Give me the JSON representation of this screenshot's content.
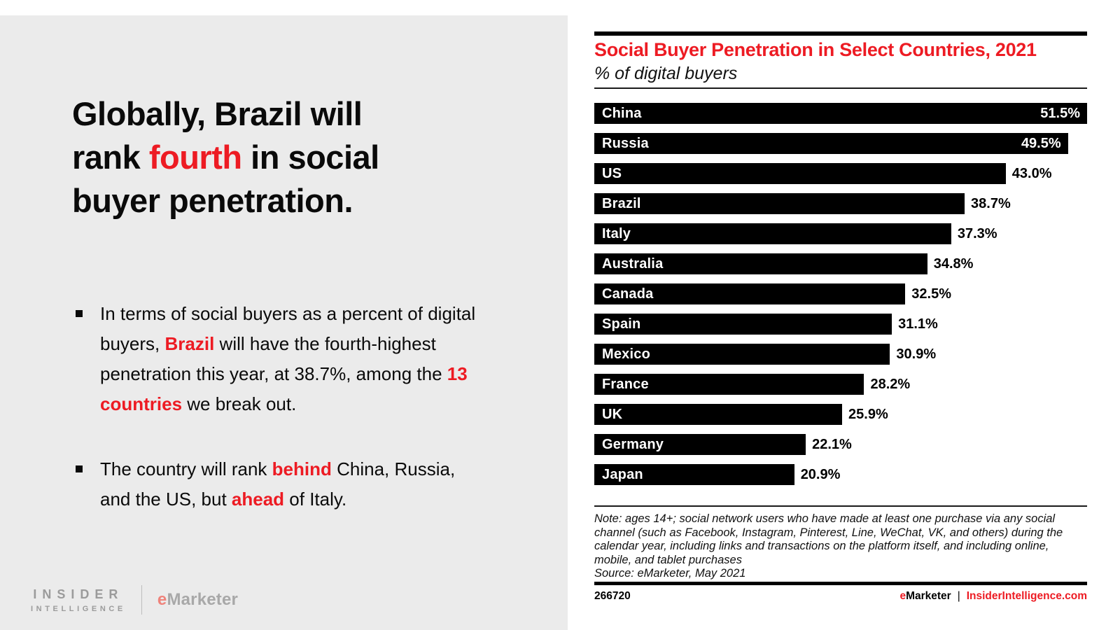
{
  "colors": {
    "red": "#ed1b23",
    "panel": "#ebebeb",
    "bar": "#000000",
    "logo-gray": "#9b9b9b",
    "logo-e": "#ef837b",
    "rule": "#000000"
  },
  "left_panel": {
    "headline_segments": [
      {
        "t": "Globally, Brazil will"
      },
      {
        "br": true
      },
      {
        "t": "rank "
      },
      {
        "t": "fourth",
        "hl": true
      },
      {
        "t": " in social"
      },
      {
        "br": true
      },
      {
        "t": "buyer penetration."
      }
    ],
    "bullets": [
      {
        "segments": [
          {
            "t": "In terms of social buyers as a percent of digital buyers, "
          },
          {
            "t": "Brazil",
            "hl": true
          },
          {
            "t": " will have the fourth-highest penetration this year, at 38.7%, among the "
          },
          {
            "t": "13 countries",
            "hl": true
          },
          {
            "t": " we break out."
          }
        ]
      },
      {
        "segments": [
          {
            "t": "The country will rank "
          },
          {
            "t": "behind",
            "hl": true
          },
          {
            "t": " China, Russia, and the US, but "
          },
          {
            "t": "ahead",
            "hl": true
          },
          {
            "t": " of Italy."
          }
        ]
      }
    ],
    "logo": {
      "line1": "INSIDER",
      "line2": "INTELLIGENCE",
      "brand_e": "e",
      "brand_rest": "Marketer"
    }
  },
  "chart": {
    "title": "Social Buyer Penetration in Select Countries, 2021",
    "subtitle": "% of digital buyers",
    "note": "Note: ages 14+; social network users who have made at least one purchase via any social channel (such as Facebook, Instagram, Pinterest, Line, WeChat, VK, and others) during the calendar year, including links and transactions on the platform itself, and including online, mobile, and tablet purchases",
    "source": "Source: eMarketer, May 2021",
    "footer_id": "266720",
    "footer_brand_e": "e",
    "footer_brand_rest": "Marketer",
    "footer_sep": "|",
    "footer_site": "InsiderIntelligence.com"
  },
  "chart_data": {
    "type": "bar",
    "orientation": "horizontal",
    "title": "Social Buyer Penetration in Select Countries, 2021",
    "ylabel": "",
    "xlabel": "% of digital buyers",
    "xlim": [
      0,
      51.5
    ],
    "grid": false,
    "legend_position": "none",
    "bar_color": "#000000",
    "categories": [
      "China",
      "Russia",
      "US",
      "Brazil",
      "Italy",
      "Australia",
      "Canada",
      "Spain",
      "Mexico",
      "France",
      "UK",
      "Germany",
      "Japan"
    ],
    "values": [
      51.5,
      49.5,
      43.0,
      38.7,
      37.3,
      34.8,
      32.5,
      31.1,
      30.9,
      28.2,
      25.9,
      22.1,
      20.9
    ],
    "value_labels": [
      "51.5%",
      "49.5%",
      "43.0%",
      "38.7%",
      "37.3%",
      "34.8%",
      "32.5%",
      "31.1%",
      "30.9%",
      "28.2%",
      "25.9%",
      "22.1%",
      "20.9%"
    ]
  }
}
